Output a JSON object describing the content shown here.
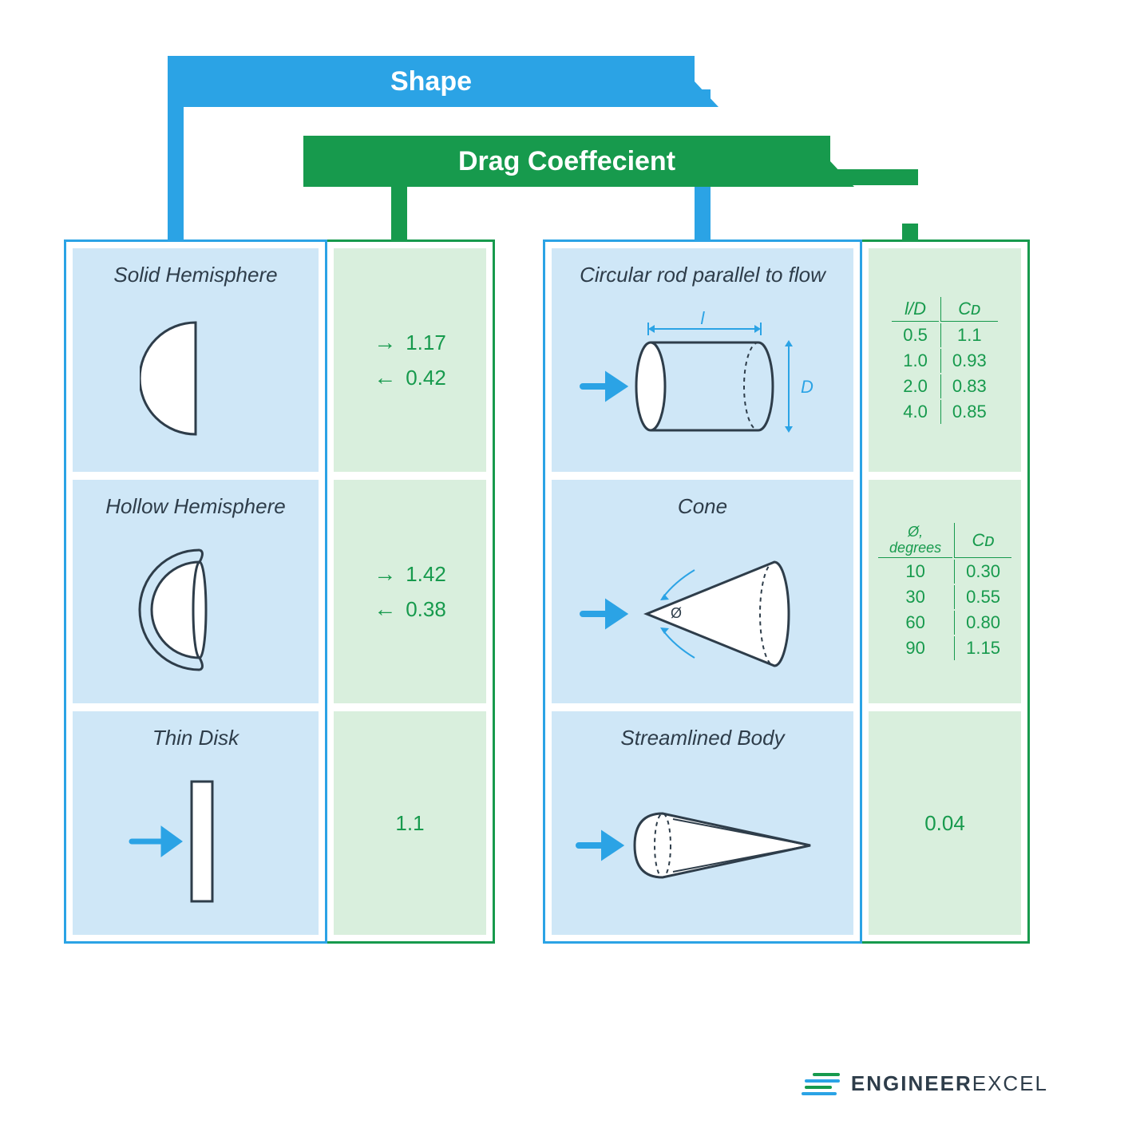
{
  "colors": {
    "blue": "#2ba3e5",
    "green": "#179a4d",
    "shape_bg": "#cfe7f7",
    "drag_bg": "#d9efdd",
    "text": "#2e3d4a",
    "stroke": "#2e3d4a",
    "white": "#ffffff"
  },
  "header": {
    "shape_label": "Shape",
    "drag_label": "Drag Coeffecient"
  },
  "left": {
    "solid_hemisphere": {
      "title": "Solid Hemisphere",
      "values": {
        "forward": "1.17",
        "backward": "0.42"
      }
    },
    "hollow_hemisphere": {
      "title": "Hollow Hemisphere",
      "values": {
        "forward": "1.42",
        "backward": "0.38"
      }
    },
    "thin_disk": {
      "title": "Thin Disk",
      "value": "1.1"
    }
  },
  "right": {
    "rod": {
      "title": "Circular rod parallel to flow",
      "dim_l": "l",
      "dim_d": "D",
      "table": {
        "col1": "l/D",
        "col2": "Cᴅ",
        "rows": [
          [
            "0.5",
            "1.1"
          ],
          [
            "1.0",
            "0.93"
          ],
          [
            "2.0",
            "0.83"
          ],
          [
            "4.0",
            "0.85"
          ]
        ]
      }
    },
    "cone": {
      "title": "Cone",
      "angle_sym": "Ø",
      "table": {
        "col1": "Ø, degrees",
        "col2": "Cᴅ",
        "rows": [
          [
            "10",
            "0.30"
          ],
          [
            "30",
            "0.55"
          ],
          [
            "60",
            "0.80"
          ],
          [
            "90",
            "1.15"
          ]
        ]
      }
    },
    "streamlined": {
      "title": "Streamlined Body",
      "value": "0.04"
    }
  },
  "logo": {
    "bold": "ENGINEER",
    "light": "EXCEL"
  }
}
